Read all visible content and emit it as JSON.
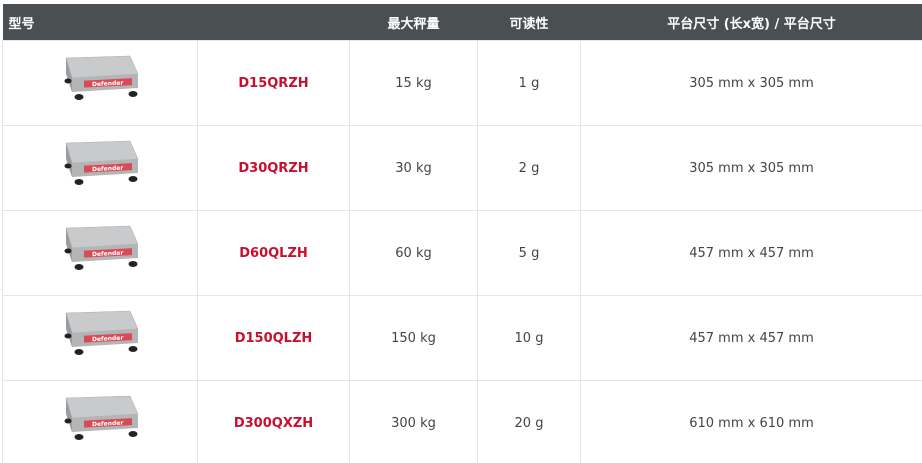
{
  "headers": [
    "型号",
    "",
    "最大秤量",
    "可读性",
    "平台尺寸 (长x宽) / 平台尺寸"
  ],
  "accent": "#c8102e",
  "header_bg": "#4a4f52",
  "logo_text": "Defender",
  "rows": [
    {
      "model": "D15QRZH",
      "capacity": "15 kg",
      "readability": "1 g",
      "size": "305 mm x 305 mm"
    },
    {
      "model": "D30QRZH",
      "capacity": "30 kg",
      "readability": "2 g",
      "size": "305 mm x 305 mm"
    },
    {
      "model": "D60QLZH",
      "capacity": "60 kg",
      "readability": "5 g",
      "size": "457 mm x 457 mm"
    },
    {
      "model": "D150QLZH",
      "capacity": "150 kg",
      "readability": "10 g",
      "size": "457 mm x 457 mm"
    },
    {
      "model": "D300QXZH",
      "capacity": "300 kg",
      "readability": "20 g",
      "size": "610 mm x 610 mm"
    }
  ]
}
